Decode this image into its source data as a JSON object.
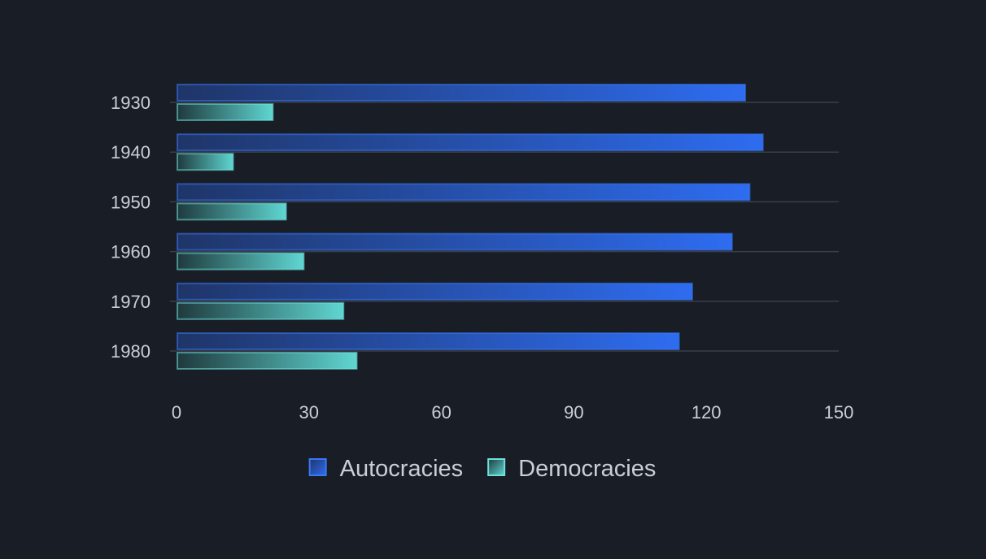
{
  "chart_data": {
    "type": "bar",
    "orientation": "horizontal",
    "title": "",
    "xlabel": "",
    "ylabel": "",
    "categories": [
      "1930",
      "1940",
      "1950",
      "1960",
      "1970",
      "1980"
    ],
    "series": [
      {
        "name": "Autocracies",
        "values": [
          129,
          133,
          130,
          126,
          117,
          114
        ],
        "color": "#2f6ae8",
        "border_color": "#3b78f5"
      },
      {
        "name": "Democracies",
        "values": [
          22,
          13,
          25,
          29,
          38,
          41
        ],
        "color": "#5fd3cf",
        "border_color": "#6fe0db"
      }
    ],
    "xlim": [
      0,
      150
    ],
    "x_ticks": [
      "0",
      "30",
      "60",
      "90",
      "120",
      "150"
    ],
    "grid": true,
    "legend_position": "bottom-center"
  }
}
